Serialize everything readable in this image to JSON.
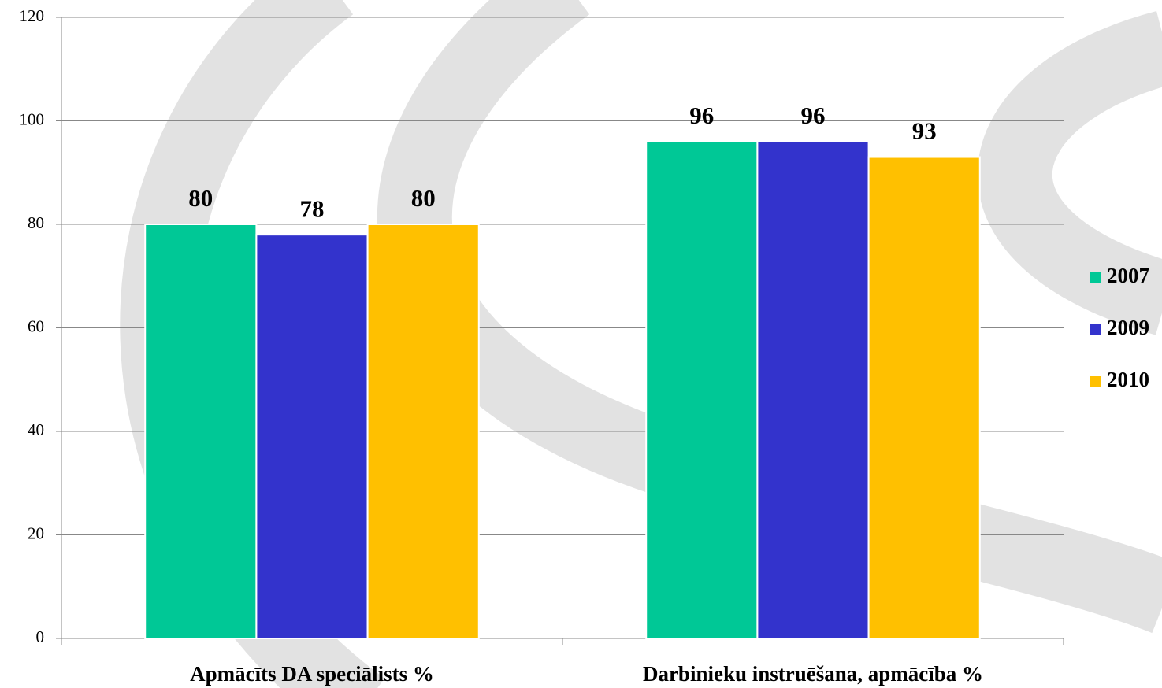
{
  "chart_data": {
    "type": "bar",
    "categories": [
      "Apmācīts DA speciālists %",
      "Darbinieku instruēšana, apmācība %"
    ],
    "series": [
      {
        "name": "2007",
        "color": "#00c896",
        "values": [
          80,
          96
        ]
      },
      {
        "name": "2009",
        "color": "#3333cc",
        "values": [
          78,
          96
        ]
      },
      {
        "name": "2010",
        "color": "#ffc000",
        "values": [
          80,
          93
        ]
      }
    ],
    "ylim": [
      0,
      120
    ],
    "yticks": [
      0,
      20,
      40,
      60,
      80,
      100,
      120
    ],
    "grid": true,
    "legend": "right"
  }
}
